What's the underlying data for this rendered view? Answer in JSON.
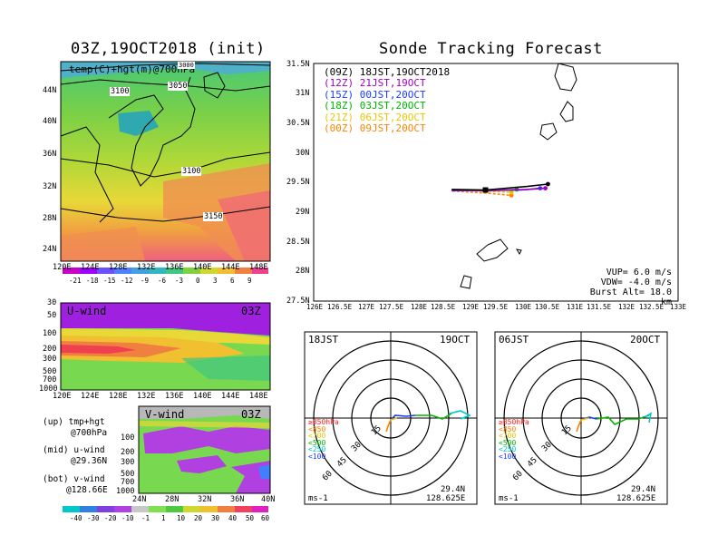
{
  "left_title": "03Z,19OCT2018 (init)",
  "right_title": "Sonde Tracking Forecast",
  "map_panel": {
    "label": "temp(C)+hgt(m)@700hPa",
    "lat_labels": [
      "44N",
      "40N",
      "36N",
      "32N",
      "28N",
      "24N"
    ],
    "lon_labels": [
      "120E",
      "124E",
      "128E",
      "132E",
      "136E",
      "140E",
      "144E",
      "148E"
    ],
    "contour_labels": [
      "3100",
      "3050",
      "3000",
      "3100",
      "3150"
    ],
    "colorbar_labels": [
      "-21",
      "-18",
      "-15",
      "-12",
      "-9",
      "-6",
      "-3",
      "0",
      "3",
      "6",
      "9"
    ]
  },
  "uwind_panel": {
    "label": "U-wind",
    "time": "03Z",
    "p_labels": [
      "30",
      "50",
      "100",
      "200",
      "300",
      "500",
      "700",
      "1000"
    ],
    "lon_labels": [
      "120E",
      "124E",
      "128E",
      "132E",
      "136E",
      "140E",
      "144E",
      "148E"
    ]
  },
  "vwind_panel": {
    "label": "V-wind",
    "time": "03Z",
    "p_labels": [
      "100",
      "200",
      "300",
      "500",
      "700",
      "1000"
    ],
    "lat_labels": [
      "24N",
      "28N",
      "32N",
      "36N",
      "40N"
    ],
    "colorbar_labels": [
      "-40",
      "-30",
      "-20",
      "-10",
      "-1",
      "1",
      "10",
      "20",
      "30",
      "40",
      "50",
      "60"
    ]
  },
  "panel_notes": [
    {
      "a": "(up) tmp+hgt",
      "b": "@700hPa"
    },
    {
      "a": "(mid) u-wind",
      "b": "@29.36N"
    },
    {
      "a": "(bot) v-wind",
      "b": "@128.66E"
    }
  ],
  "track_panel": {
    "legend": [
      {
        "text": "(09Z)  18JST,19OCT2018",
        "color": "#000000"
      },
      {
        "text": "(12Z)  21JST,19OCT",
        "color": "#a000c8"
      },
      {
        "text": "(15Z)  00JST,20OCT",
        "color": "#1e3cff"
      },
      {
        "text": "(18Z)  03JST,20OCT",
        "color": "#00b400"
      },
      {
        "text": "(21Z)  06JST,20OCT",
        "color": "#e6c800"
      },
      {
        "text": "(00Z)  09JST,20OCT",
        "color": "#ff8200"
      }
    ],
    "params": [
      "VUP=  6.0 m/s",
      "VDW= -4.0 m/s",
      "Burst Alt= 18.0 km"
    ],
    "lat_labels": [
      "31.5N",
      "31N",
      "30.5N",
      "30N",
      "29.5N",
      "29N",
      "28.5N",
      "28N",
      "27.5N"
    ],
    "lon_labels": [
      "126E",
      "126.5E",
      "127E",
      "127.5E",
      "128E",
      "128.5E",
      "129E",
      "129.5E",
      "130E",
      "130.5E",
      "131E",
      "131.5E",
      "132E",
      "132.5E",
      "133E"
    ]
  },
  "polar_left": {
    "time": "18JST",
    "date": "19OCT",
    "lat": "29.4N",
    "lon": "128.625E",
    "unit": "ms-1"
  },
  "polar_right": {
    "time": "06JST",
    "date": "20OCT",
    "lat": "29.4N",
    "lon": "128.625E",
    "unit": "ms-1"
  },
  "polar_ring_labels": [
    "15",
    "30",
    "45",
    "60"
  ],
  "pressure_legend": [
    {
      "text": "≥850hPa",
      "color": "#ff2020"
    },
    {
      "text": "<850",
      "color": "#ff8200"
    },
    {
      "text": "<700",
      "color": "#e6c800"
    },
    {
      "text": "<500",
      "color": "#00b400"
    },
    {
      "text": "<250",
      "color": "#00c8c8"
    },
    {
      "text": "<100",
      "color": "#1e3cff"
    }
  ],
  "chart_data": [
    {
      "type": "line",
      "title": "Sonde Tracking Forecast",
      "xlabel": "",
      "ylabel": "",
      "xlim": [
        126,
        133
      ],
      "ylim": [
        27.5,
        31.5
      ],
      "launch": {
        "lon": 129.3,
        "lat": 29.37
      },
      "series": [
        {
          "name": "18JST,19OCT2018",
          "points": [
            [
              128.65,
              29.38
            ],
            [
              129.3,
              29.37
            ],
            [
              130.1,
              29.43
            ],
            [
              130.5,
              29.47
            ]
          ]
        },
        {
          "name": "21JST,19OCT",
          "points": [
            [
              128.65,
              29.37
            ],
            [
              129.3,
              29.36
            ],
            [
              130.1,
              29.38
            ],
            [
              130.45,
              29.4
            ]
          ]
        },
        {
          "name": "00JST,20OCT",
          "points": [
            [
              128.65,
              29.36
            ],
            [
              129.3,
              29.36
            ],
            [
              130.0,
              29.37
            ],
            [
              130.35,
              29.4
            ]
          ]
        },
        {
          "name": "03JST,20OCT",
          "points": [
            [
              128.66,
              29.37
            ],
            [
              129.3,
              29.36
            ],
            [
              129.9,
              29.38
            ]
          ]
        },
        {
          "name": "06JST,20OCT",
          "points": [
            [
              128.66,
              29.36
            ],
            [
              129.3,
              29.35
            ],
            [
              129.8,
              29.33
            ]
          ]
        },
        {
          "name": "09JST,20OCT",
          "points": [
            [
              128.66,
              29.35
            ],
            [
              129.3,
              29.32
            ],
            [
              129.8,
              29.28
            ]
          ]
        }
      ]
    }
  ]
}
